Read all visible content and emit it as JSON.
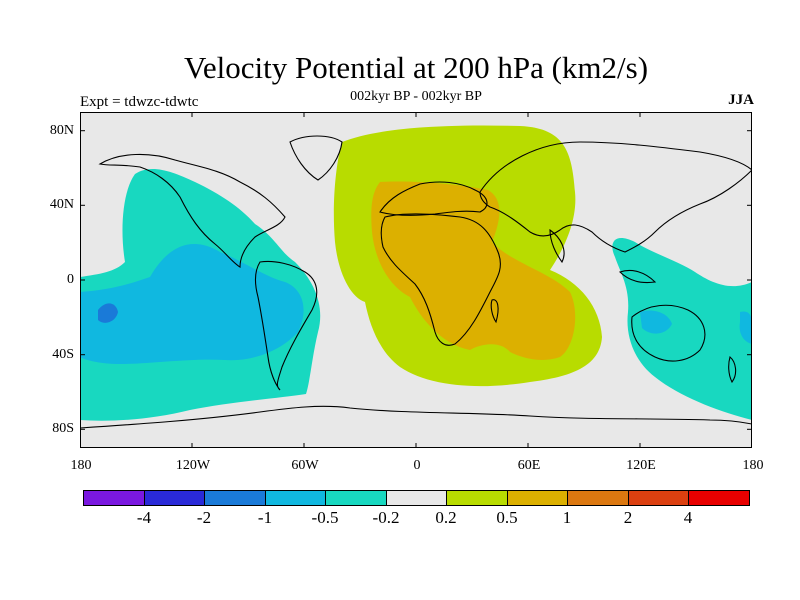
{
  "title": "Velocity Potential at 200 hPa (km2/s)",
  "subtitle": "002kyr BP - 002kyr BP",
  "experiment": "Expt = tdwzc-tdwtc",
  "season": "JJA",
  "lat_labels": [
    "80N",
    "40N",
    "0",
    "40S",
    "80S"
  ],
  "lon_labels": [
    "180",
    "120W",
    "60W",
    "0",
    "60E",
    "120E",
    "180"
  ],
  "colorbar": {
    "colors": [
      "#7a18e0",
      "#2a2ad8",
      "#1a7ad8",
      "#10b8e0",
      "#18d8c0",
      "#e8e8e8",
      "#b8dc00",
      "#dcb000",
      "#dc7810",
      "#dc4010",
      "#e80000"
    ],
    "labels": [
      "-4",
      "-2",
      "-1",
      "-0.5",
      "-0.2",
      "0.2",
      "0.5",
      "1",
      "2",
      "4"
    ]
  },
  "map_regions": [
    {
      "name": "negative anomaly over Pacific, Americas and Australia",
      "color": "#18d8c0"
    },
    {
      "name": "stronger negative anomaly over eastern Pacific",
      "color": "#10b8e0"
    },
    {
      "name": "positive anomaly over Atlantic, Europe, Africa and Indian Ocean",
      "color": "#b8dc00"
    },
    {
      "name": "stronger positive anomaly over Africa and Middle East",
      "color": "#dcb000"
    }
  ]
}
